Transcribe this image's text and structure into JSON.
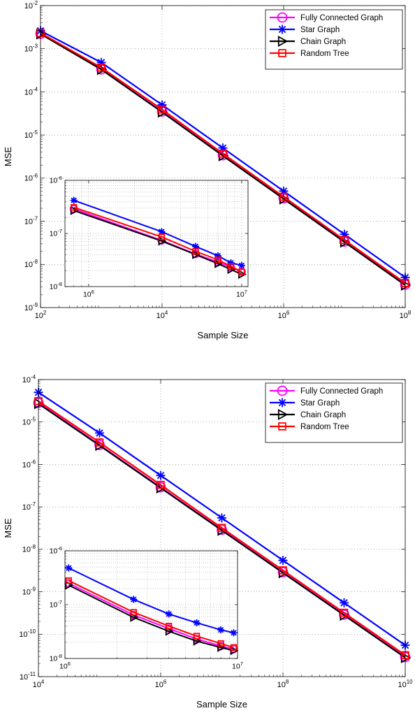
{
  "chart_data": [
    {
      "type": "line",
      "scale": "log-log",
      "grid": true,
      "legend_position": "top-right",
      "xlabel": "Sample Size",
      "ylabel": "MSE",
      "xlim": [
        100,
        100000000
      ],
      "ylim": [
        1e-09,
        0.01
      ],
      "x_ticks": [
        {
          "v": 100,
          "b": "10",
          "e": "2"
        },
        {
          "v": 10000,
          "b": "10",
          "e": "4"
        },
        {
          "v": 1000000,
          "b": "10",
          "e": "6"
        },
        {
          "v": 100000000,
          "b": "10",
          "e": "8"
        }
      ],
      "y_ticks": [
        {
          "v": 1e-09,
          "b": "10",
          "e": "-9"
        },
        {
          "v": 1e-08,
          "b": "10",
          "e": "-8"
        },
        {
          "v": 1e-07,
          "b": "10",
          "e": "-7"
        },
        {
          "v": 1e-06,
          "b": "10",
          "e": "-6"
        },
        {
          "v": 1e-05,
          "b": "10",
          "e": "-5"
        },
        {
          "v": 0.0001,
          "b": "10",
          "e": "-4"
        },
        {
          "v": 0.001,
          "b": "10",
          "e": "-3"
        },
        {
          "v": 0.01,
          "b": "10",
          "e": "-2"
        }
      ],
      "x": [
        100,
        1000,
        10000,
        100000,
        1000000,
        10000000,
        100000000
      ],
      "series": [
        {
          "name": "Fully Connected Graph",
          "color": "#ff00ff",
          "marker": "circle",
          "values": [
            0.00222,
            0.000333,
            3.5e-05,
            3.4e-06,
            3.4e-07,
            3.4e-08,
            3.4e-09
          ]
        },
        {
          "name": "Star Graph",
          "color": "#0000ff",
          "marker": "asterisk",
          "values": [
            0.0026,
            0.00048,
            5e-05,
            5e-06,
            5e-07,
            5e-08,
            5e-09
          ]
        },
        {
          "name": "Chain Graph",
          "color": "#000000",
          "marker": "triangle-right",
          "values": [
            0.0022,
            0.00033,
            3.4e-05,
            3.3e-06,
            3.3e-07,
            3.3e-08,
            3.3e-09
          ]
        },
        {
          "name": "Random Tree",
          "color": "#ff0000",
          "marker": "square",
          "values": [
            0.00232,
            0.000365,
            3.9e-05,
            3.7e-06,
            3.7e-07,
            3.7e-08,
            3.7e-09
          ]
        }
      ],
      "inset": {
        "xlim": [
          700000,
          11000000
        ],
        "ylim": [
          1e-08,
          1e-06
        ],
        "x_ticks": [
          {
            "v": 1000000,
            "b": "10",
            "e": "6"
          },
          {
            "v": 10000000,
            "b": "10",
            "e": "7"
          }
        ],
        "y_ticks": [
          {
            "v": 1e-08,
            "b": "10",
            "e": "-8"
          },
          {
            "v": 1e-07,
            "b": "10",
            "e": "-7"
          },
          {
            "v": 1e-06,
            "b": "10",
            "e": "-6"
          }
        ],
        "x": [
          800000,
          3000000,
          5000000,
          7000000,
          8500000,
          10000000
        ],
        "series": [
          {
            "name": "Fully Connected Graph",
            "color": "#ff00ff",
            "marker": "circle",
            "values": [
              2.9e-07,
              7.4e-08,
              4.1e-08,
              2.9e-08,
              2.3e-08,
              1.9e-08
            ]
          },
          {
            "name": "Star Graph",
            "color": "#0000ff",
            "marker": "asterisk",
            "values": [
              4.2e-07,
              1.08e-07,
              5.7e-08,
              3.8e-08,
              2.8e-08,
              2.5e-08
            ]
          },
          {
            "name": "Chain Graph",
            "color": "#000000",
            "marker": "triangle-right",
            "values": [
              2.7e-07,
              7.2e-08,
              4e-08,
              2.7e-08,
              2.1e-08,
              1.7e-08
            ]
          },
          {
            "name": "Random Tree",
            "color": "#ff0000",
            "marker": "square",
            "values": [
              3.1e-07,
              8.6e-08,
              4.6e-08,
              3.2e-08,
              2.4e-08,
              1.9e-08
            ]
          }
        ]
      }
    },
    {
      "type": "line",
      "scale": "log-log",
      "grid": true,
      "legend_position": "top-right",
      "xlabel": "Sample Size",
      "ylabel": "MSE",
      "xlim": [
        10000,
        10000000000
      ],
      "ylim": [
        1e-11,
        0.0001
      ],
      "x_ticks": [
        {
          "v": 10000,
          "b": "10",
          "e": "4"
        },
        {
          "v": 1000000,
          "b": "10",
          "e": "6"
        },
        {
          "v": 100000000,
          "b": "10",
          "e": "8"
        },
        {
          "v": 10000000000,
          "b": "10",
          "e": "10"
        }
      ],
      "y_ticks": [
        {
          "v": 1e-11,
          "b": "10",
          "e": "-11"
        },
        {
          "v": 1e-10,
          "b": "10",
          "e": "-10"
        },
        {
          "v": 1e-09,
          "b": "10",
          "e": "-9"
        },
        {
          "v": 1e-08,
          "b": "10",
          "e": "-8"
        },
        {
          "v": 1e-07,
          "b": "10",
          "e": "-7"
        },
        {
          "v": 1e-06,
          "b": "10",
          "e": "-6"
        },
        {
          "v": 1e-05,
          "b": "10",
          "e": "-5"
        },
        {
          "v": 0.0001,
          "b": "10",
          "e": "-4"
        }
      ],
      "x": [
        10000,
        100000,
        1000000,
        10000000,
        100000000,
        1000000000,
        10000000000
      ],
      "series": [
        {
          "name": "Fully Connected Graph",
          "color": "#ff00ff",
          "marker": "circle",
          "values": [
            2.85e-05,
            2.9e-06,
            2.9e-07,
            2.9e-08,
            2.9e-09,
            2.9e-10,
            2.9e-11
          ]
        },
        {
          "name": "Star Graph",
          "color": "#0000ff",
          "marker": "asterisk",
          "values": [
            5e-05,
            5.5e-06,
            5.5e-07,
            5.5e-08,
            5.5e-09,
            5.5e-10,
            5.5e-11
          ]
        },
        {
          "name": "Chain Graph",
          "color": "#000000",
          "marker": "triangle-right",
          "values": [
            2.7e-05,
            2.8e-06,
            2.8e-07,
            2.8e-08,
            2.8e-09,
            2.8e-10,
            2.8e-11
          ]
        },
        {
          "name": "Random Tree",
          "color": "#ff0000",
          "marker": "square",
          "values": [
            3.1e-05,
            3.3e-06,
            3.3e-07,
            3.2e-08,
            3.2e-09,
            3.2e-10,
            3.2e-11
          ]
        }
      ],
      "inset": {
        "xlim": [
          1000000,
          10000000
        ],
        "ylim": [
          1e-08,
          1e-06
        ],
        "x_ticks": [
          {
            "v": 1000000,
            "b": "10",
            "e": "6"
          },
          {
            "v": 10000000,
            "b": "10",
            "e": "7"
          }
        ],
        "y_ticks": [
          {
            "v": 1e-08,
            "b": "10",
            "e": "-8"
          },
          {
            "v": 1e-07,
            "b": "10",
            "e": "-7"
          },
          {
            "v": 1e-06,
            "b": "10",
            "e": "-6"
          }
        ],
        "x": [
          1050000,
          2500000,
          4000000,
          5800000,
          8000000,
          9500000
        ],
        "series": [
          {
            "name": "Fully Connected Graph",
            "color": "#ff00ff",
            "marker": "circle",
            "values": [
              2.5e-07,
              6.4e-08,
              3.6e-08,
              2.3e-08,
              1.7e-08,
              1.5e-08
            ]
          },
          {
            "name": "Star Graph",
            "color": "#0000ff",
            "marker": "asterisk",
            "values": [
              4.8e-07,
              1.25e-07,
              6.7e-08,
              4.6e-08,
              3.4e-08,
              3e-08
            ]
          },
          {
            "name": "Chain Graph",
            "color": "#000000",
            "marker": "triangle-right",
            "values": [
              2.3e-07,
              5.8e-08,
              3.2e-08,
              2.1e-08,
              1.6e-08,
              1.4e-08
            ]
          },
          {
            "name": "Random Tree",
            "color": "#ff0000",
            "marker": "square",
            "values": [
              2.8e-07,
              7.2e-08,
              4e-08,
              2.6e-08,
              1.9e-08,
              1.6e-08
            ]
          }
        ]
      }
    }
  ]
}
